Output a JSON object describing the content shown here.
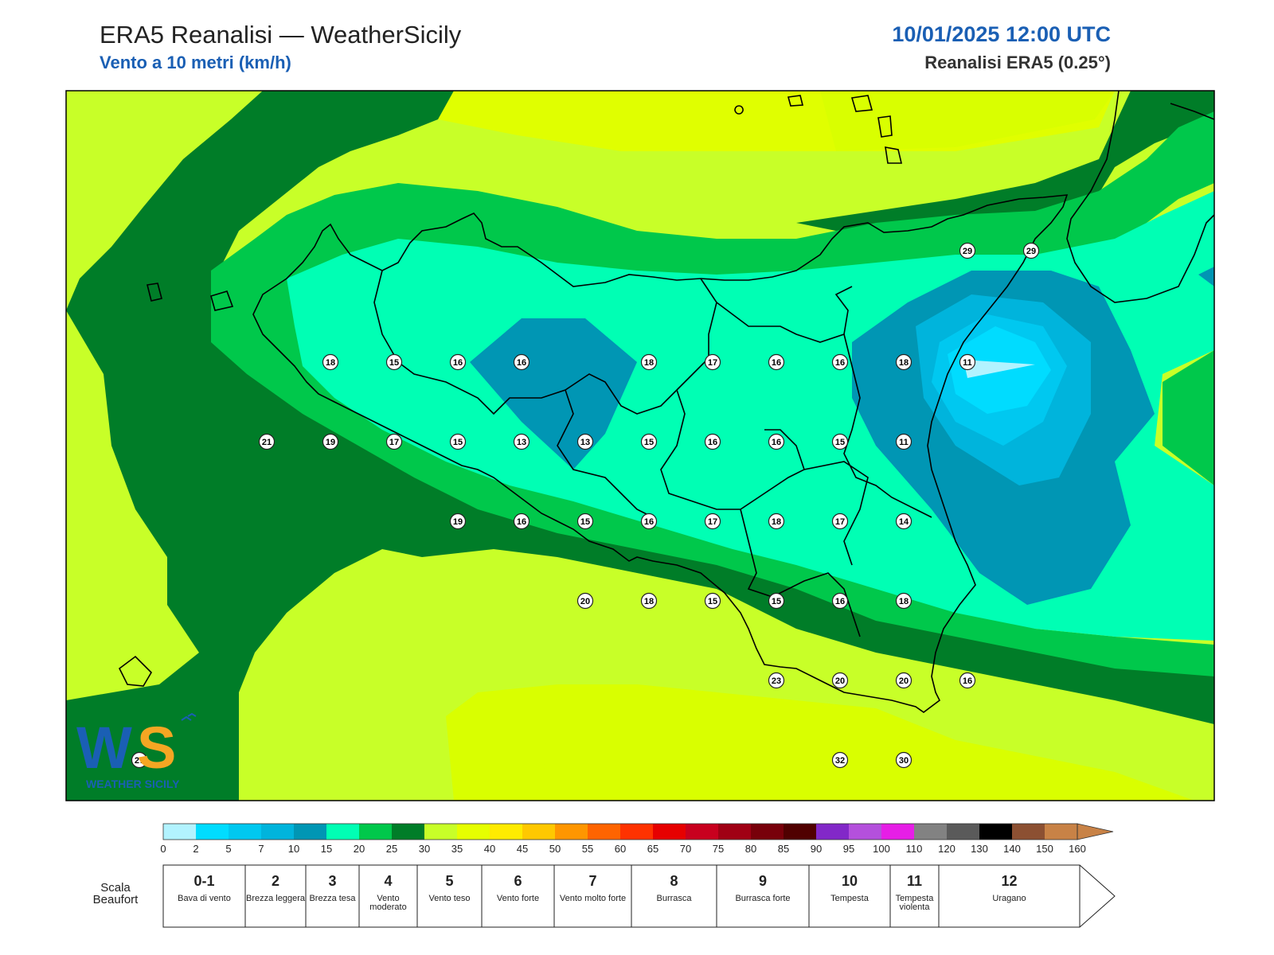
{
  "header": {
    "title": "ERA5 Reanalisi — WeatherSicily",
    "subtitle": "Vento a 10 metri (km/h)",
    "datetime": "10/01/2025 12:00 UTC",
    "source": "Reanalisi ERA5 (0.25°)"
  },
  "logo": {
    "letters": "WS",
    "text": "WEATHER SICILY"
  },
  "stations": [
    {
      "v": "29",
      "gx": 14,
      "gy": 1.6
    },
    {
      "v": "29",
      "gx": 15,
      "gy": 1.6
    },
    {
      "v": "18",
      "gx": 4,
      "gy": 3
    },
    {
      "v": "15",
      "gx": 5,
      "gy": 3
    },
    {
      "v": "16",
      "gx": 6,
      "gy": 3
    },
    {
      "v": "16",
      "gx": 7,
      "gy": 3
    },
    {
      "v": "18",
      "gx": 9,
      "gy": 3
    },
    {
      "v": "17",
      "gx": 10,
      "gy": 3
    },
    {
      "v": "16",
      "gx": 11,
      "gy": 3
    },
    {
      "v": "16",
      "gx": 12,
      "gy": 3
    },
    {
      "v": "18",
      "gx": 13,
      "gy": 3
    },
    {
      "v": "11",
      "gx": 14,
      "gy": 3
    },
    {
      "v": "21",
      "gx": 3,
      "gy": 4
    },
    {
      "v": "19",
      "gx": 4,
      "gy": 4
    },
    {
      "v": "17",
      "gx": 5,
      "gy": 4
    },
    {
      "v": "15",
      "gx": 6,
      "gy": 4
    },
    {
      "v": "13",
      "gx": 7,
      "gy": 4
    },
    {
      "v": "13",
      "gx": 8,
      "gy": 4
    },
    {
      "v": "15",
      "gx": 9,
      "gy": 4
    },
    {
      "v": "16",
      "gx": 10,
      "gy": 4
    },
    {
      "v": "16",
      "gx": 11,
      "gy": 4
    },
    {
      "v": "15",
      "gx": 12,
      "gy": 4
    },
    {
      "v": "11",
      "gx": 13,
      "gy": 4
    },
    {
      "v": "19",
      "gx": 6,
      "gy": 5
    },
    {
      "v": "16",
      "gx": 7,
      "gy": 5
    },
    {
      "v": "15",
      "gx": 8,
      "gy": 5
    },
    {
      "v": "16",
      "gx": 9,
      "gy": 5
    },
    {
      "v": "17",
      "gx": 10,
      "gy": 5
    },
    {
      "v": "18",
      "gx": 11,
      "gy": 5
    },
    {
      "v": "17",
      "gx": 12,
      "gy": 5
    },
    {
      "v": "14",
      "gx": 13,
      "gy": 5
    },
    {
      "v": "20",
      "gx": 8,
      "gy": 6
    },
    {
      "v": "18",
      "gx": 9,
      "gy": 6
    },
    {
      "v": "15",
      "gx": 10,
      "gy": 6
    },
    {
      "v": "15",
      "gx": 11,
      "gy": 6
    },
    {
      "v": "16",
      "gx": 12,
      "gy": 6
    },
    {
      "v": "18",
      "gx": 13,
      "gy": 6
    },
    {
      "v": "23",
      "gx": 11,
      "gy": 7
    },
    {
      "v": "20",
      "gx": 12,
      "gy": 7
    },
    {
      "v": "20",
      "gx": 13,
      "gy": 7
    },
    {
      "v": "16",
      "gx": 14,
      "gy": 7
    },
    {
      "v": "27",
      "gx": 1,
      "gy": 8
    },
    {
      "v": "32",
      "gx": 12,
      "gy": 8
    },
    {
      "v": "30",
      "gx": 13,
      "gy": 8
    }
  ],
  "colorbar": {
    "ticks": [
      "0",
      "2",
      "5",
      "7",
      "10",
      "15",
      "20",
      "25",
      "30",
      "35",
      "40",
      "45",
      "50",
      "55",
      "60",
      "65",
      "70",
      "75",
      "80",
      "85",
      "90",
      "95",
      "100",
      "110",
      "120",
      "130",
      "140",
      "150",
      "160"
    ],
    "colors": [
      "#b2f3ff",
      "#00dcff",
      "#00c8f0",
      "#00b4dc",
      "#0096b4",
      "#00ffb4",
      "#00c84b",
      "#007d28",
      "#c8ff28",
      "#e6ff00",
      "#ffeb00",
      "#ffc800",
      "#ff9600",
      "#ff6400",
      "#ff3200",
      "#e60000",
      "#c8001e",
      "#a00014",
      "#78000a",
      "#500000",
      "#8228c8",
      "#b450dc",
      "#e61ee6",
      "#828282",
      "#5a5a5a",
      "#000000",
      "#8c5032",
      "#c88246"
    ]
  },
  "beaufort": {
    "label": "Scala Beaufort",
    "scale": [
      {
        "num": "0-1",
        "name": "Bava di vento"
      },
      {
        "num": "2",
        "name": "Brezza leggera"
      },
      {
        "num": "3",
        "name": "Brezza tesa"
      },
      {
        "num": "4",
        "name": "Vento moderato"
      },
      {
        "num": "5",
        "name": "Vento teso"
      },
      {
        "num": "6",
        "name": "Vento forte"
      },
      {
        "num": "7",
        "name": "Vento molto forte"
      },
      {
        "num": "8",
        "name": "Burrasca"
      },
      {
        "num": "9",
        "name": "Burrasca forte"
      },
      {
        "num": "10",
        "name": "Tempesta"
      },
      {
        "num": "11",
        "name": "Tempesta violenta"
      },
      {
        "num": "12",
        "name": "Uragano"
      }
    ]
  }
}
